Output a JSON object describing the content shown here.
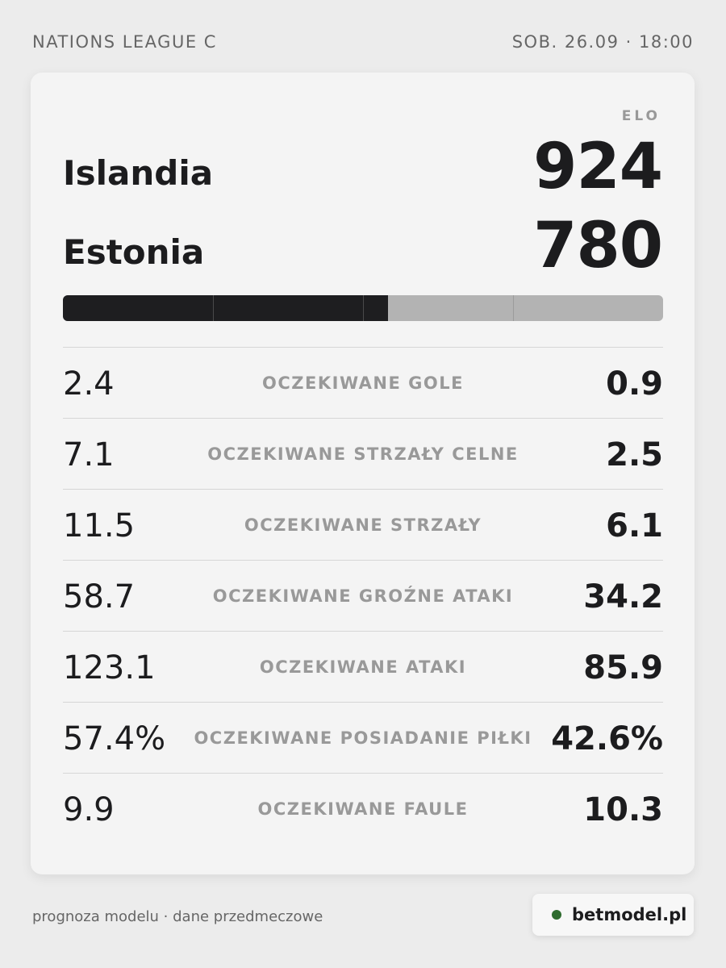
{
  "header": {
    "league": "NATIONS LEAGUE C",
    "datetime": "SOB. 26.09 · 18:00"
  },
  "elo_label": "ELO",
  "teams": [
    {
      "name": "Islandia",
      "elo": 924
    },
    {
      "name": "Estonia",
      "elo": 780
    }
  ],
  "stats": [
    {
      "home": "2.4",
      "label": "OCZEKIWANE GOLE",
      "away": "0.9"
    },
    {
      "home": "7.1",
      "label": "OCZEKIWANE STRZAŁY CELNE",
      "away": "2.5"
    },
    {
      "home": "11.5",
      "label": "OCZEKIWANE STRZAŁY",
      "away": "6.1"
    },
    {
      "home": "58.7",
      "label": "OCZEKIWANE GROŹNE ATAKI",
      "away": "34.2"
    },
    {
      "home": "123.1",
      "label": "OCZEKIWANE ATAKI",
      "away": "85.9"
    },
    {
      "home": "57.4%",
      "label": "OCZEKIWANE POSIADANIE PIŁKI",
      "away": "42.6%"
    },
    {
      "home": "9.9",
      "label": "OCZEKIWANE FAULE",
      "away": "10.3"
    }
  ],
  "footer": {
    "note": "prognoza modelu · dane przedmeczowe",
    "brand": "betmodel.pl"
  }
}
